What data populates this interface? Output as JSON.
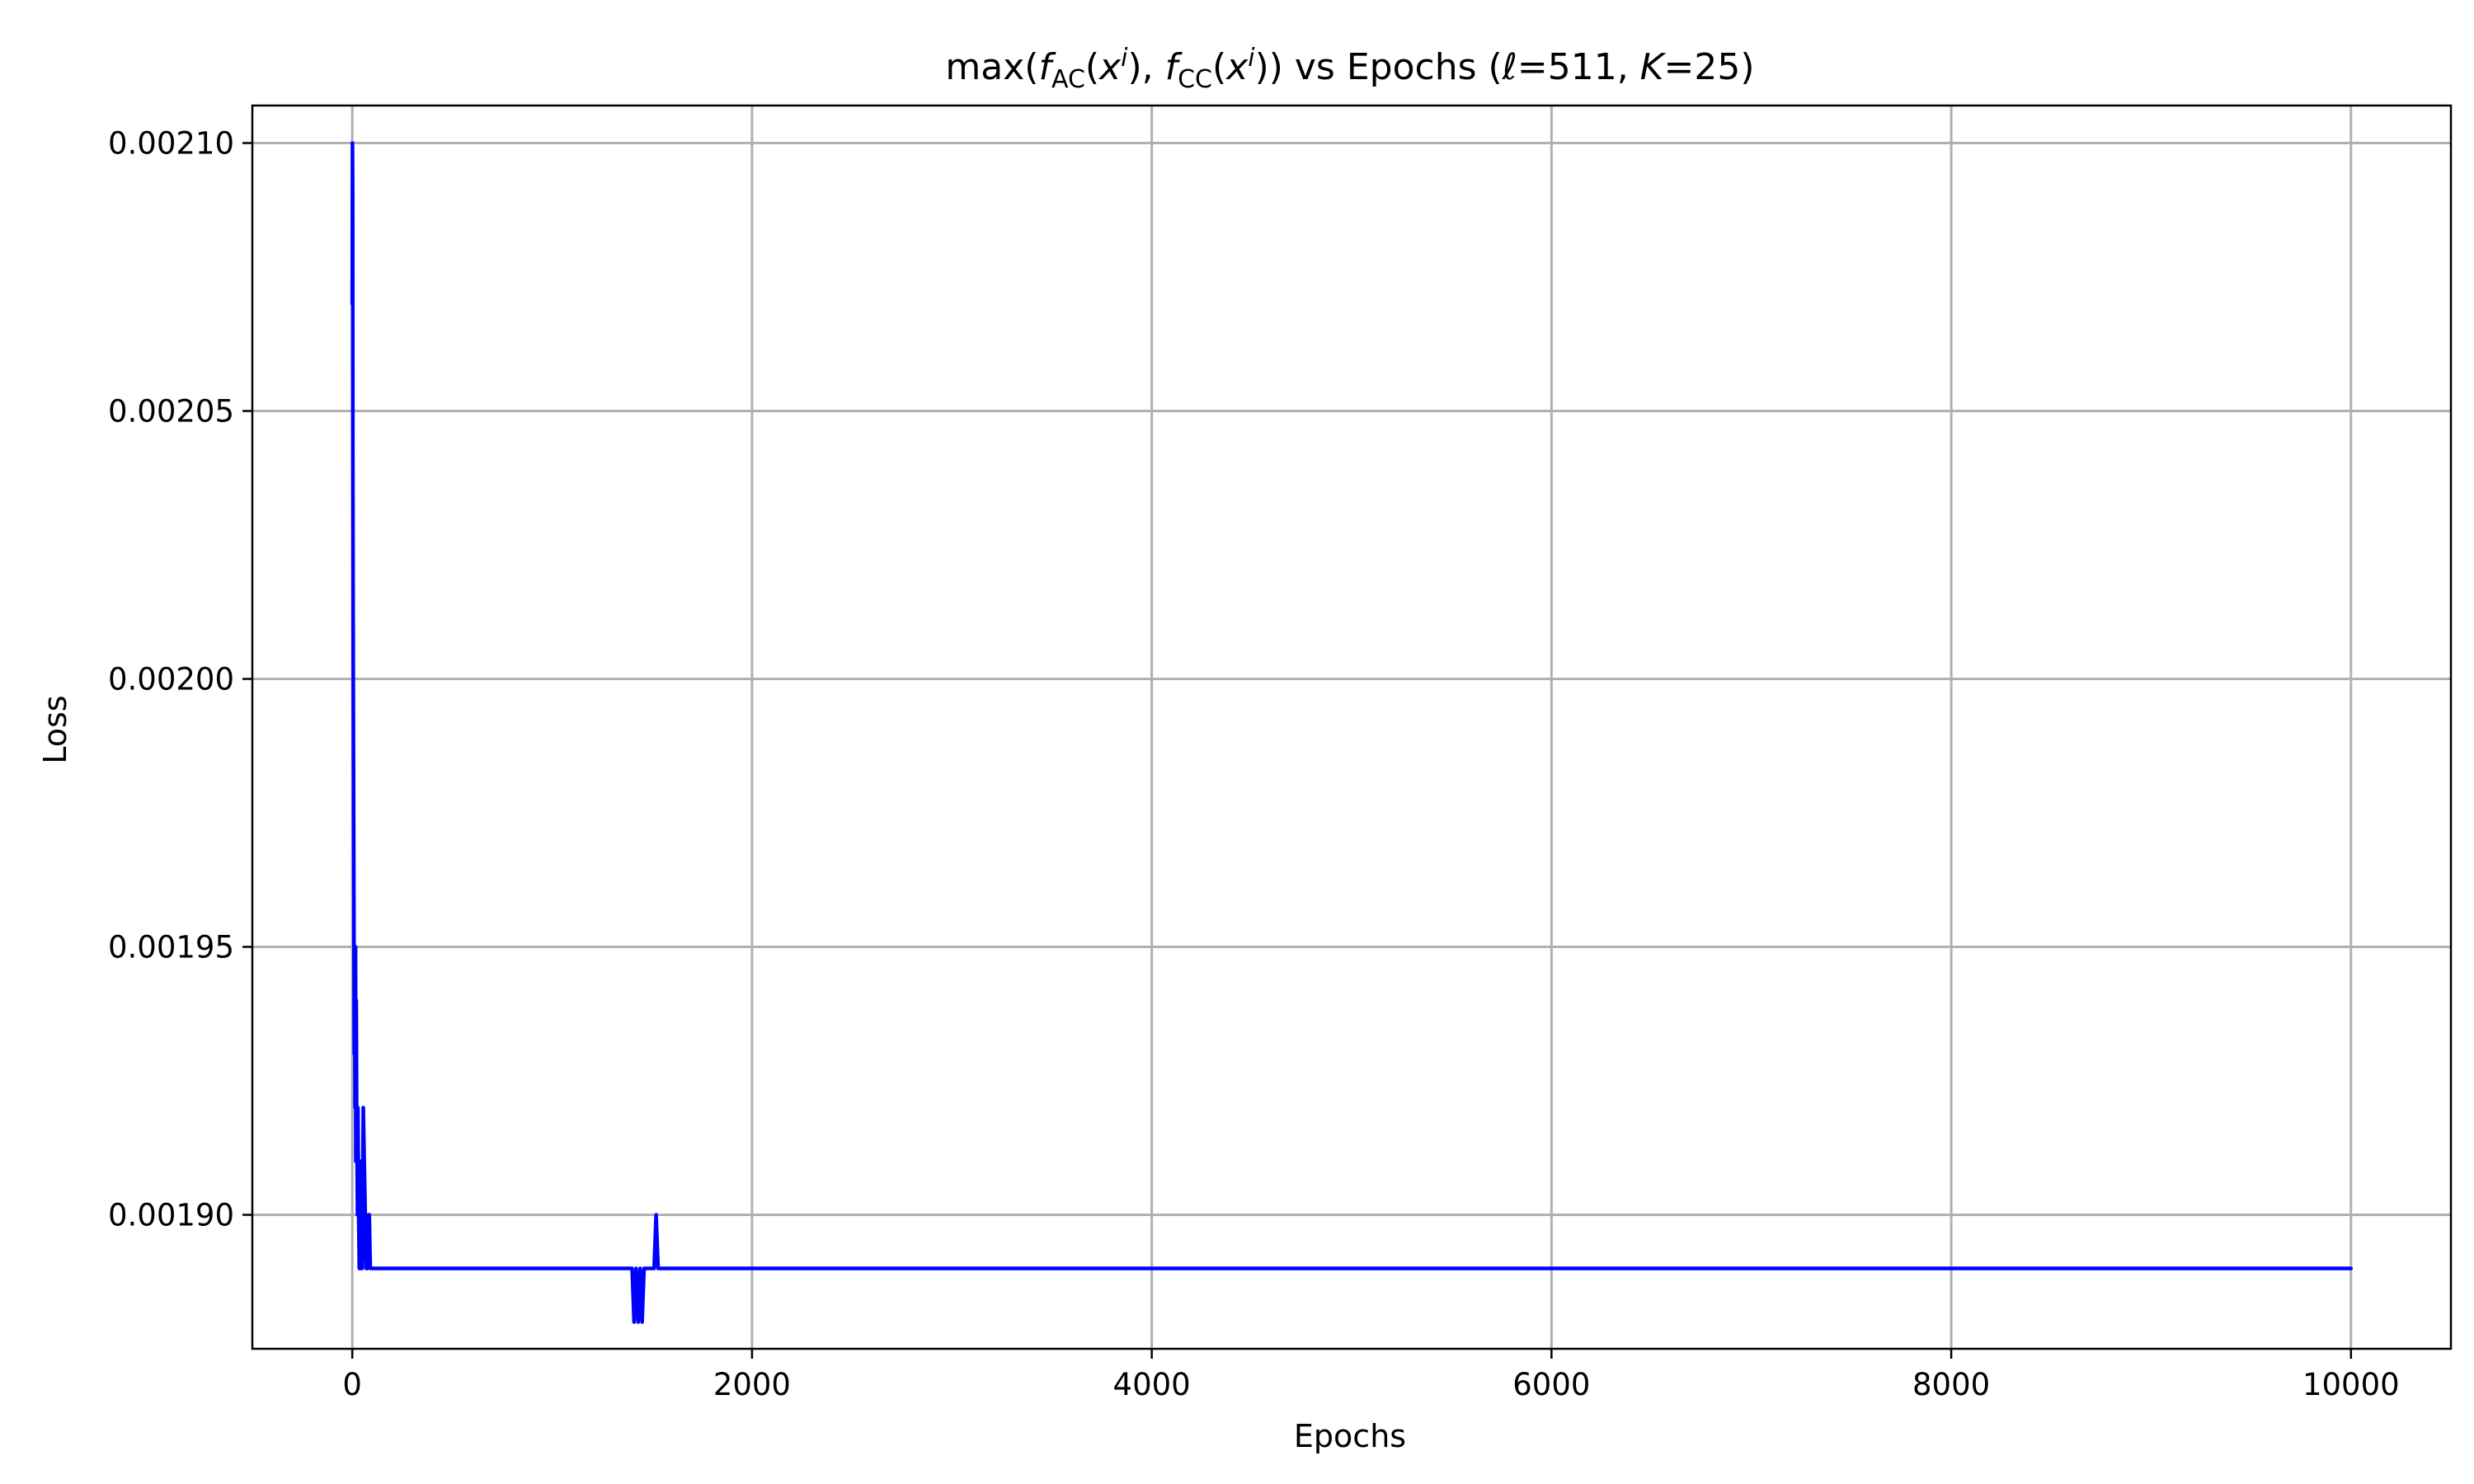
{
  "chart_data": {
    "type": "line",
    "title": {
      "prefix": "max(",
      "f1": "f",
      "f1_sub": "AC",
      "mid1": "(",
      "x1": "x",
      "x1_sup": "i",
      "mid2": "), ",
      "f2": "f",
      "f2_sub": "CC",
      "mid3": "(",
      "x2": "x",
      "x2_sup": "i",
      "mid4": ")) vs Epochs (",
      "ell": "ℓ",
      "mid5": "=511, ",
      "k": "K",
      "suffix": "=25)"
    },
    "xlabel": "Epochs",
    "ylabel": "Loss",
    "xlim": [
      -500,
      10500
    ],
    "ylim": [
      0.001875,
      0.002107
    ],
    "x_ticks": [
      0,
      2000,
      4000,
      6000,
      8000,
      10000
    ],
    "x_tick_labels": [
      "0",
      "2000",
      "4000",
      "6000",
      "8000",
      "10000"
    ],
    "y_ticks": [
      0.0019,
      0.00195,
      0.002,
      0.00205,
      0.0021
    ],
    "y_tick_labels": [
      "0.00190",
      "0.00195",
      "0.00200",
      "0.00205",
      "0.00210"
    ],
    "grid": true,
    "legend": "none",
    "series_color": "#0000ff",
    "series": [
      {
        "x": [
          0,
          1,
          2,
          3,
          5,
          8,
          10,
          12,
          14,
          16,
          18,
          20,
          22,
          24,
          26,
          28,
          30,
          32,
          35,
          38,
          40,
          42,
          45,
          48,
          50,
          55,
          60,
          65,
          70,
          75,
          80,
          85,
          90,
          95,
          100,
          110,
          120,
          130,
          140,
          150,
          160,
          170,
          180,
          190,
          200,
          215,
          230,
          245,
          255,
          262,
          270,
          285,
          300,
          330,
          400,
          500,
          580,
          600,
          620,
          700,
          800,
          900,
          1000,
          1100,
          1200,
          1300,
          1400,
          1410,
          1420,
          1430,
          1440,
          1450,
          1460,
          1470,
          1480,
          1490,
          1500,
          1510,
          1520,
          1530,
          1540,
          1550,
          1560,
          1570,
          1580,
          1590,
          1600,
          1610,
          1620,
          1630,
          1640,
          1650,
          1660,
          1680,
          1700,
          1750,
          1800,
          2000,
          2100,
          2105,
          2200,
          3000,
          4000,
          5000,
          6000,
          7000,
          8000,
          9000,
          10000
        ],
        "y": [
          0.00207,
          0.0021,
          0.00209,
          0.00204,
          0.002,
          0.00196,
          0.00193,
          0.00195,
          0.00192,
          0.00195,
          0.00191,
          0.00194,
          0.00192,
          0.00191,
          0.0019,
          0.00192,
          0.00191,
          0.0019,
          0.00189,
          0.00191,
          0.0019,
          0.00189,
          0.00191,
          0.0019,
          0.00189,
          0.00192,
          0.00191,
          0.0019,
          0.00189,
          0.00189,
          0.0019,
          0.0019,
          0.00189,
          0.00189,
          0.00189,
          0.00189,
          0.00189,
          0.00189,
          0.00189,
          0.00189,
          0.00189,
          0.00189,
          0.00189,
          0.00189,
          0.00189,
          0.00189,
          0.00189,
          0.00189,
          0.00189,
          0.00189,
          0.00189,
          0.00189,
          0.00189,
          0.00189,
          0.00189,
          0.00189,
          0.00189,
          0.00189,
          0.00189,
          0.00189,
          0.00189,
          0.00189,
          0.00189,
          0.00189,
          0.00189,
          0.00189,
          0.00189,
          0.00188,
          0.00189,
          0.00188,
          0.00189,
          0.00188,
          0.00189,
          0.00189,
          0.00189,
          0.00189,
          0.00189,
          0.00189,
          0.0019,
          0.00189,
          0.00189,
          0.00189,
          0.00189,
          0.00189,
          0.00189,
          0.00189,
          0.00189,
          0.00189,
          0.00189,
          0.00189,
          0.00189,
          0.00189,
          0.00189,
          0.00189,
          0.00189,
          0.00189,
          0.00189,
          0.00189,
          0.00189,
          0.00189,
          0.00189,
          0.00189,
          0.00189,
          0.00189,
          0.00189,
          0.00189,
          0.00189,
          0.00189,
          0.00189
        ]
      }
    ]
  }
}
